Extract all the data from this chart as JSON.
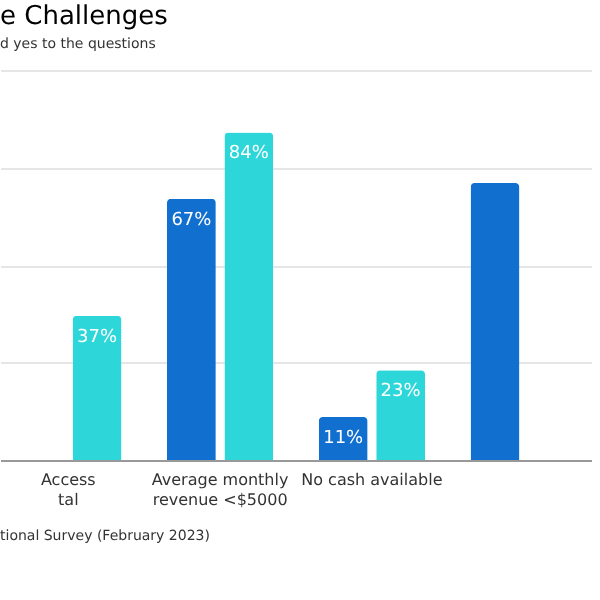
{
  "chart_data": {
    "type": "bar",
    "title": "e Challenges",
    "subtitle": "d yes to the questions",
    "categories": [
      "Access\ntal",
      "Average monthly\nrevenue <$5000",
      "No cash available",
      null
    ],
    "series": [
      {
        "color": "#1170cf",
        "values": [
          null,
          67,
          11,
          71
        ],
        "value_labels": [
          null,
          "67%",
          "11%",
          null
        ]
      },
      {
        "color": "#2dd6d8",
        "values": [
          37,
          84,
          23,
          null
        ],
        "value_labels": [
          "37%",
          "84%",
          "23%",
          null
        ]
      }
    ],
    "ylim": [
      0,
      100
    ],
    "yticks": [
      {
        "value": 0,
        "label": null
      },
      {
        "value": 25,
        "label": null
      },
      {
        "value": 50,
        "label": null
      },
      {
        "value": 75,
        "label": null
      },
      {
        "value": 100,
        "label": null
      }
    ],
    "grid": "y",
    "legend": false,
    "tick_labels": "x",
    "annotations": [
      "tional Survey (February 2023)"
    ]
  }
}
